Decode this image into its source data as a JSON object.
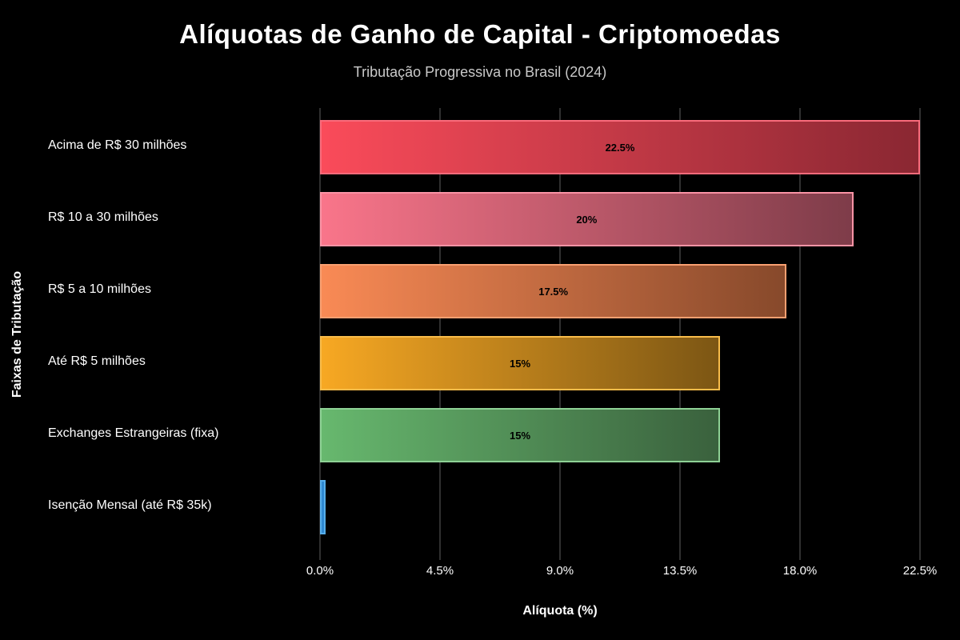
{
  "chart_data": {
    "type": "bar",
    "orientation": "horizontal",
    "title": "Alíquotas de Ganho de Capital - Criptomoedas",
    "subtitle": "Tributação Progressiva no Brasil (2024)",
    "xlabel": "Alíquota (%)",
    "ylabel": "Faixas de Tributação",
    "categories": [
      "Acima de R$ 30 milhões",
      "R$ 10 a 30 milhões",
      "R$ 5 a 10 milhões",
      "Até R$ 5 milhões",
      "Exchanges Estrangeiras (fixa)",
      "Isenção Mensal (até R$ 35k)"
    ],
    "values": [
      22.5,
      20,
      17.5,
      15,
      15,
      0
    ],
    "bar_labels": [
      "22.5%",
      "20%",
      "17.5%",
      "15%",
      "15%",
      ""
    ],
    "xlim": [
      0,
      22.5
    ],
    "x_ticks": [
      0,
      4.5,
      9,
      13.5,
      18,
      22.5
    ],
    "x_tick_labels": [
      "0.0%",
      "4.5%",
      "9.0%",
      "13.5%",
      "18.0%",
      "22.5%"
    ],
    "grid": "vertical",
    "legend": false,
    "colors": {
      "background": "#000000",
      "title": "#ffffff",
      "subtitle": "#c9c9c9",
      "axis_text": "#ffffff",
      "gridline": "#2f2f2f",
      "bar_label": "#000000",
      "bars": [
        {
          "start": "#fa4b5a",
          "end": "#8a2732",
          "border": "#f96b7b"
        },
        {
          "start": "#f9758a",
          "end": "#7e3c49",
          "border": "#fa93a5"
        },
        {
          "start": "#f98a55",
          "end": "#87492b",
          "border": "#faa071"
        },
        {
          "start": "#f7a823",
          "end": "#7c5614",
          "border": "#f9bc4a"
        },
        {
          "start": "#67b86e",
          "end": "#3a613d",
          "border": "#8ed195"
        },
        {
          "start": "#2f88d0",
          "end": "#2f88d0",
          "border": "#57aeea"
        }
      ]
    }
  }
}
